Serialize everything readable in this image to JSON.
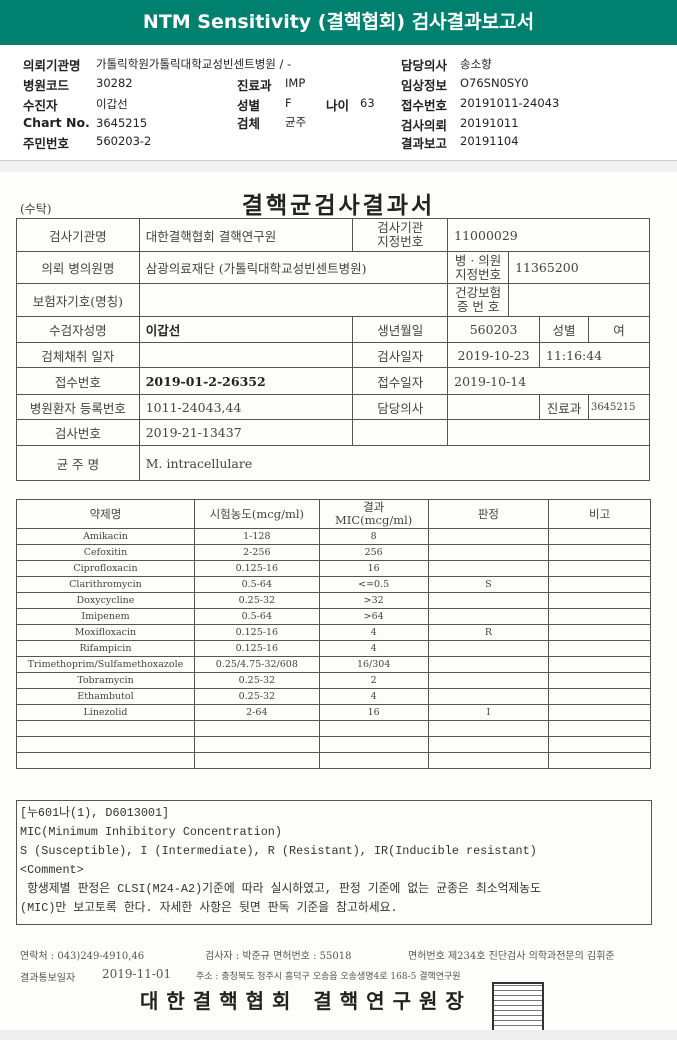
{
  "header": {
    "title": "NTM Sensitivity (결핵협회) 검사결과보고서"
  },
  "info": {
    "request_org_label": "의뢰기관명",
    "request_org": "가톨릭학원가톨릭대학교성빈센트병원 / -",
    "hospital_code_label": "병원코드",
    "hospital_code": "30282",
    "recipient_label": "수진자",
    "recipient": "이갑선",
    "chart_no_label": "Chart No.",
    "chart_no": "3645215",
    "resident_no_label": "주민번호",
    "resident_no": "560203-2",
    "dept_label": "진료과",
    "dept": "IMP",
    "sex_label": "성별",
    "sex": "F",
    "age_label": "나이",
    "age": "63",
    "specimen_label": "검체",
    "specimen": "균주",
    "doctor_label": "담당의사",
    "doctor": "송소향",
    "clinical_label": "임상정보",
    "clinical": "O76SN0SY0",
    "receipt_label": "접수번호",
    "receipt": "20191011-24043",
    "request_date_label": "검사의뢰",
    "request_date": "20191011",
    "report_date_label": "결과보고",
    "report_date": "20191104"
  },
  "doc": {
    "suta": "(수탁)",
    "title": "결핵균검사결과서",
    "r1": {
      "l1": "검사기관명",
      "v1": "대한결핵협회 결핵연구원",
      "l2": "검사기관\n지정번호",
      "v2": "11000029"
    },
    "r2": {
      "l1": "의뢰 병의원명",
      "v1": "삼광의료재단 (가톨릭대학교성빈센트병원)",
      "l2": "병 · 의원\n지정번호",
      "v2": "11365200"
    },
    "r3": {
      "l1": "보험자기호(명칭)",
      "v1": "",
      "l2": "건강보험\n증 번 호",
      "v2": ""
    },
    "r4": {
      "l1": "수검자성명",
      "v1": "이갑선",
      "l2": "생년월일",
      "v2": "560203",
      "l3": "성별",
      "v3": "여"
    },
    "r5": {
      "l1": "검체채취 일자",
      "v1": "",
      "l2": "검사일자",
      "v2": "2019-10-23",
      "v3": "11:16:44"
    },
    "r6": {
      "l1": "접수번호",
      "v1": "2019-01-2-26352",
      "l2": "접수일자",
      "v2": "2019-10-14"
    },
    "r7": {
      "l1": "병원환자 등록번호",
      "v1": "1011-24043,44",
      "l2": "담당의사",
      "v2": "",
      "l3": "진료과",
      "v3": "3645215"
    },
    "r8": {
      "l1": "검사번호",
      "v1": "2019-21-13437"
    },
    "r9": {
      "l1": "균 주 명",
      "v1": "M. intracellulare"
    },
    "drug_table": {
      "headers": [
        "약제명",
        "시험농도(mcg/ml)",
        "결과\nMIC(mcg/ml)",
        "판정",
        "비고"
      ],
      "rows": [
        [
          "Amikacin",
          "1-128",
          "8",
          "",
          ""
        ],
        [
          "Cefoxitin",
          "2-256",
          "256",
          "",
          ""
        ],
        [
          "Ciprofloxacin",
          "0.125-16",
          "16",
          "",
          ""
        ],
        [
          "Clarithromycin",
          "0.5-64",
          "<=0.5",
          "S",
          ""
        ],
        [
          "Doxycycline",
          "0.25-32",
          ">32",
          "",
          ""
        ],
        [
          "Imipenem",
          "0.5-64",
          ">64",
          "",
          ""
        ],
        [
          "Moxifloxacin",
          "0.125-16",
          "4",
          "R",
          ""
        ],
        [
          "Rifampicin",
          "0.125-16",
          "4",
          "",
          ""
        ],
        [
          "Trimethoprim/Sulfamethoxazole",
          "0.25/4.75-32/608",
          "16/304",
          "",
          ""
        ],
        [
          "Tobramycin",
          "0.25-32",
          "2",
          "",
          ""
        ],
        [
          "Ethambutol",
          "0.25-32",
          "4",
          "",
          ""
        ],
        [
          "Linezolid",
          "2-64",
          "16",
          "I",
          ""
        ],
        [
          "",
          "",
          "",
          "",
          ""
        ],
        [
          "",
          "",
          "",
          "",
          ""
        ],
        [
          "",
          "",
          "",
          "",
          ""
        ]
      ]
    },
    "comment": [
      "[누601나(1), D6013001]",
      "MIC(Minimum Inhibitory Concentration)",
      "S (Susceptible), I (Intermediate), R (Resistant), IR(Inducible resistant)",
      "<Comment>",
      " 항생제별 판정은 CLSI(M24-A2)기준에 따라 실시하였고, 판정 기준에 없는 균종은 최소억제농도",
      "(MIC)만 보고토록 한다. 자세한 사항은 뒷면 판독 기준을 참고하세요."
    ],
    "footer": {
      "contact": "연락처 : 043)249-4910,46",
      "examiner": "검사자 : 박준규  면허번호 : 55018",
      "license": "면허번호 제234호 진단검사 의학과전문의 김휘준",
      "report_date_label": "결과통보일자",
      "report_date": "2019-11-01",
      "address": "주소 : 충청북도 청주시 흥덕구 오송읍 오송생명4로 168-5 결핵연구원",
      "signature": "대한결핵협회 결핵연구원장"
    }
  }
}
